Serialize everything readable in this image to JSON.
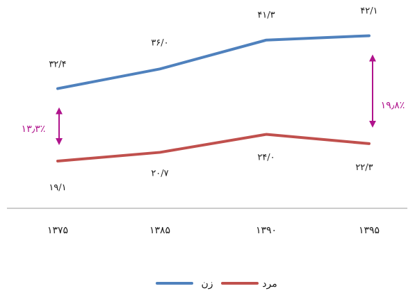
{
  "chart_data": {
    "type": "line",
    "categories": [
      "۱۳۷۵",
      "۱۳۸۵",
      "۱۳۹۰",
      "۱۳۹۵"
    ],
    "series": [
      {
        "name": "زن",
        "color": "#4f81bd",
        "values": [
          32.4,
          36.0,
          41.3,
          42.1
        ],
        "labels": [
          "۳۲/۴",
          "۳۶/۰",
          "۴۱/۳",
          "۴۲/۱"
        ]
      },
      {
        "name": "مرد",
        "color": "#c0504d",
        "values": [
          19.1,
          20.7,
          24.0,
          22.3
        ],
        "labels": [
          "۱۹/۱",
          "۲۰/۷",
          "۲۴/۰",
          "۲۲/۳"
        ]
      }
    ],
    "annotations": [
      {
        "text": "۱۳٫۳٪",
        "category_index": 0,
        "from": 19.1,
        "to": 32.4,
        "color": "#b0138c"
      },
      {
        "text": "۱۹٫۸٪",
        "category_index": 3,
        "from": 22.3,
        "to": 42.1,
        "color": "#b0138c"
      }
    ],
    "legend_position": "bottom",
    "grid": false
  }
}
